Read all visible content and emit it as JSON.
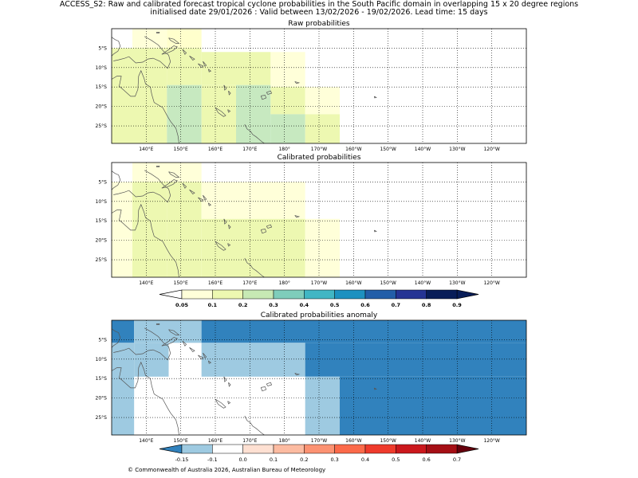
{
  "header": {
    "line1": "ACCESS_S2: Raw and calibrated forecast tropical cyclone probabilities in the South Pacific domain in overlapping 15 x 20 degree regions",
    "line2": "initialised date 29/01/2026 :  Valid between 13/02/2026 - 19/02/2026. Lead time: 15 days"
  },
  "footer": "© Commonwealth of Australia 2026, Australian Bureau of Meteorology",
  "map_axes": {
    "lon_ticks": [
      "140°E",
      "150°E",
      "160°E",
      "170°E",
      "180°",
      "170°W",
      "160°W",
      "150°W",
      "140°W",
      "130°W",
      "120°W"
    ],
    "lat_ticks": [
      "5°S",
      "10°S",
      "15°S",
      "20°S",
      "25°S"
    ]
  },
  "panels": [
    {
      "title": "Raw probabilities",
      "cells": [
        {
          "lon0": 140,
          "lon1": 150,
          "lat0": 0,
          "lat1": 5,
          "color": "#ffffd9"
        },
        {
          "lon0": 150,
          "lon1": 160,
          "lat0": 0,
          "lat1": 5,
          "color": "#ffffcc"
        },
        {
          "lon0": 134,
          "lon1": 140,
          "lat0": 5,
          "lat1": 29.5,
          "color": "#edf8b1"
        },
        {
          "lon0": 140,
          "lon1": 150,
          "lat0": 5,
          "lat1": 29.5,
          "color": "#edf8b1"
        },
        {
          "lon0": 150,
          "lon1": 160,
          "lat0": 5,
          "lat1": 14.5,
          "color": "#edf8b1"
        },
        {
          "lon0": 160,
          "lon1": 180,
          "lat0": 6,
          "lat1": 14.5,
          "color": "#edf8b1"
        },
        {
          "lon0": 180,
          "lon1": 190,
          "lat0": 6,
          "lat1": 15,
          "color": "#ffffd9"
        },
        {
          "lon0": 150,
          "lon1": 160,
          "lat0": 14.5,
          "lat1": 29.5,
          "color": "#c7e9c0"
        },
        {
          "lon0": 160,
          "lon1": 170,
          "lat0": 14.5,
          "lat1": 29.5,
          "color": "#edf8b1"
        },
        {
          "lon0": 170,
          "lon1": 180,
          "lat0": 14.5,
          "lat1": 29.5,
          "color": "#c7e9c0"
        },
        {
          "lon0": 180,
          "lon1": 190,
          "lat0": 15,
          "lat1": 22,
          "color": "#edf8b1"
        },
        {
          "lon0": 190,
          "lon1": 200,
          "lat0": 15,
          "lat1": 22,
          "color": "#ffffd9"
        },
        {
          "lon0": 180,
          "lon1": 190,
          "lat0": 22,
          "lat1": 29.5,
          "color": "#c7e9c0"
        },
        {
          "lon0": 190,
          "lon1": 200,
          "lat0": 22,
          "lat1": 29.5,
          "color": "#edf8b1"
        }
      ]
    },
    {
      "title": "Calibrated probabilities",
      "cells": [
        {
          "lon0": 140,
          "lon1": 160,
          "lat0": 0,
          "lat1": 5,
          "color": "#ffffd9"
        },
        {
          "lon0": 134,
          "lon1": 140,
          "lat0": 5,
          "lat1": 19.5,
          "color": "#ffffd9"
        },
        {
          "lon0": 140,
          "lon1": 150,
          "lat0": 5,
          "lat1": 29.5,
          "color": "#edf8b1"
        },
        {
          "lon0": 150,
          "lon1": 160,
          "lat0": 5,
          "lat1": 29.5,
          "color": "#edf8b1"
        },
        {
          "lon0": 160,
          "lon1": 190,
          "lat0": 5,
          "lat1": 14.5,
          "color": "#ffffd9"
        },
        {
          "lon0": 160,
          "lon1": 190,
          "lat0": 14.5,
          "lat1": 29.5,
          "color": "#edf8b1"
        },
        {
          "lon0": 134,
          "lon1": 140,
          "lat0": 19.5,
          "lat1": 29.5,
          "color": "#ffffd9"
        },
        {
          "lon0": 190,
          "lon1": 200,
          "lat0": 14.5,
          "lat1": 29.5,
          "color": "#ffffd9"
        }
      ]
    },
    {
      "title": "Calibrated probabilities anomaly",
      "cells": [
        {
          "lon0": 134,
          "lon1": 140.5,
          "lat0": 0,
          "lat1": 5.8,
          "color": "#3182bd"
        },
        {
          "lon0": 140.5,
          "lon1": 160,
          "lat0": 0,
          "lat1": 5.8,
          "color": "#9ecae1"
        },
        {
          "lon0": 160,
          "lon1": 254,
          "lat0": 0,
          "lat1": 5.8,
          "color": "#3182bd"
        },
        {
          "lon0": 134,
          "lon1": 140.5,
          "lat0": 5.8,
          "lat1": 29.5,
          "color": "#9ecae1"
        },
        {
          "lon0": 140.5,
          "lon1": 150.5,
          "lat0": 5.8,
          "lat1": 14.5,
          "color": "#9ecae1"
        },
        {
          "lon0": 160,
          "lon1": 190,
          "lat0": 5.8,
          "lat1": 14.5,
          "color": "#9ecae1"
        },
        {
          "lon0": 190,
          "lon1": 254,
          "lat0": 5.8,
          "lat1": 14.5,
          "color": "#3182bd"
        },
        {
          "lon0": 190,
          "lon1": 200,
          "lat0": 14.5,
          "lat1": 29.5,
          "color": "#9ecae1"
        },
        {
          "lon0": 200,
          "lon1": 254,
          "lat0": 14.5,
          "lat1": 29.5,
          "color": "#3182bd"
        }
      ]
    }
  ],
  "colorbars": [
    {
      "labels": [
        "0.05",
        "0.1",
        "0.2",
        "0.3",
        "0.4",
        "0.5",
        "0.6",
        "0.7",
        "0.8",
        "0.9"
      ],
      "under_color": "#ffffff",
      "over_color": "#081d58",
      "colors": [
        "#ffffd9",
        "#edf8b1",
        "#c7e9b4",
        "#7fcdbb",
        "#41b6c4",
        "#1d91c0",
        "#225ea8",
        "#253494",
        "#081d58"
      ]
    },
    {
      "labels": [
        "-0.15",
        "-0.1",
        "0.0",
        "0.1",
        "0.2",
        "0.3",
        "0.4",
        "0.5",
        "0.6",
        "0.7"
      ],
      "under_color": "#3182bd",
      "over_color": "#67000d",
      "colors": [
        "#9ecae1",
        "#ffffff",
        "#fee0d2",
        "#fcbba1",
        "#fc9272",
        "#fb6a4a",
        "#ef3b2c",
        "#cb181d",
        "#a50f15"
      ]
    }
  ]
}
